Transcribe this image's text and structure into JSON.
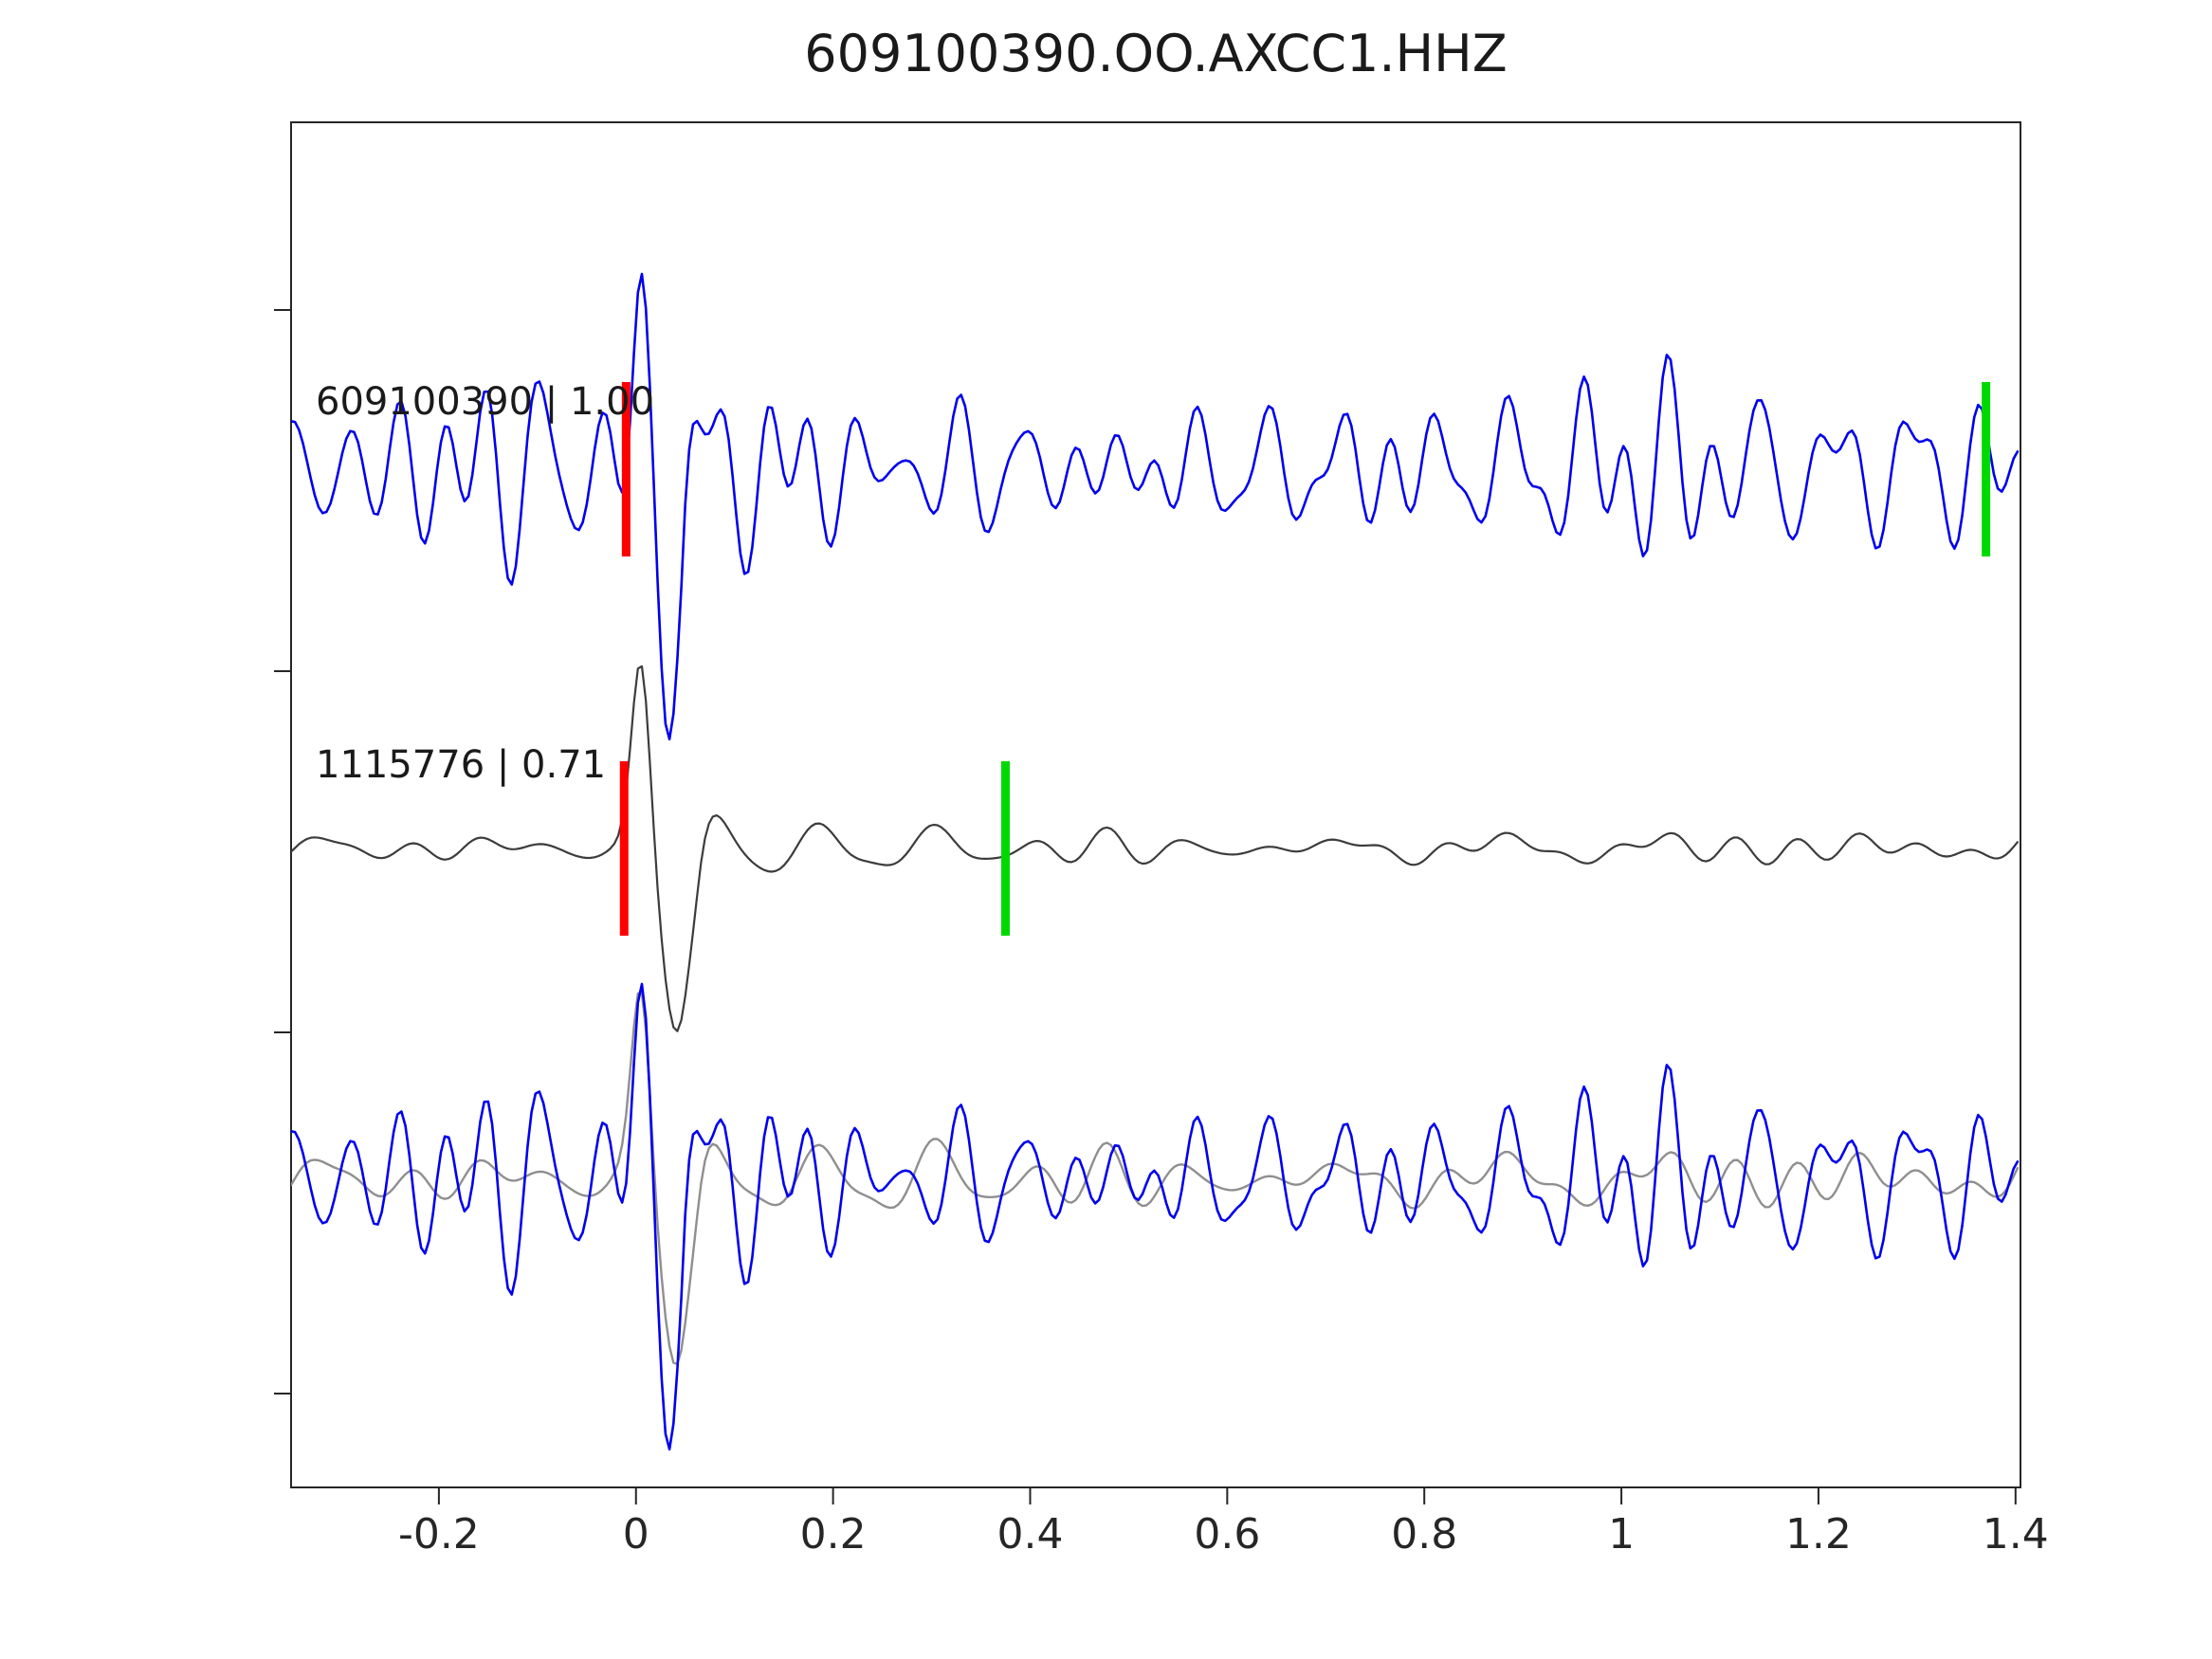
{
  "figure": {
    "background": "#ffffff"
  },
  "chart_data": {
    "type": "line",
    "title": "609100390.OO.AXCC1.HHZ",
    "xlabel": "",
    "ylabel": "",
    "xlim": [
      -0.35,
      1.405
    ],
    "grid": false,
    "legend": null,
    "x_ticks": [
      -0.2,
      0,
      0.2,
      0.4,
      0.6,
      0.8,
      1,
      1.2,
      1.4
    ],
    "x_tick_labels": [
      "-0.2",
      "0",
      "0.2",
      "0.4",
      "0.6",
      "0.8",
      "1",
      "1.2",
      "1.4"
    ],
    "colors": {
      "template_blue": "#0000ee",
      "detection_gray": "#3c3c3c",
      "overlay_gray": "#8f8f8f",
      "pick_red": "#ff0000",
      "pick_green": "#00d900",
      "axis": "#262626"
    },
    "traces": [
      {
        "name": "template-trace",
        "row": "top",
        "color": "#0000ee",
        "width": 2.6,
        "label": "609100390 | 1.00",
        "picks": [
          {
            "color": "#ff0000",
            "t": -0.01
          },
          {
            "color": "#00d900",
            "t": 1.37
          }
        ],
        "synthesis": {
          "seed": 1137,
          "n_comp": 22,
          "noise_amp": 11,
          "f_min": 7,
          "f_max": 26,
          "event": {
            "up_amp": 175,
            "up_t": 0.004,
            "up_w": 0.012,
            "down_amp": 230,
            "down_t": 0.033,
            "down_w": 0.016,
            "coda_amp": 100,
            "coda_freq": 14,
            "coda_tau": 0.05,
            "coda_t0": 0.045
          }
        }
      },
      {
        "name": "detection-trace",
        "row": "middle",
        "color": "#3c3c3c",
        "width": 2.2,
        "label": "1115776 | 0.71",
        "picks": [
          {
            "color": "#ff0000",
            "t": -0.012
          },
          {
            "color": "#00d900",
            "t": 0.375
          }
        ],
        "synthesis": {
          "seed": 77,
          "n_comp": 20,
          "noise_amp": 3.4,
          "f_min": 5,
          "f_max": 18,
          "event": {
            "up_amp": 195,
            "up_t": 0.005,
            "up_w": 0.013,
            "down_amp": 190,
            "down_t": 0.042,
            "down_w": 0.02,
            "coda_amp": 48,
            "coda_freq": 10,
            "coda_tau": 0.1,
            "coda_t0": 0.06
          }
        }
      },
      {
        "name": "overlay-gray-trace",
        "row": "bottom",
        "color": "#8f8f8f",
        "width": 2.4,
        "label": "",
        "picks": [],
        "synthesis": {
          "seed": 77,
          "n_comp": 20,
          "noise_amp": 6,
          "f_min": 5,
          "f_max": 18,
          "event": {
            "up_amp": 195,
            "up_t": 0.005,
            "up_w": 0.013,
            "down_amp": 190,
            "down_t": 0.042,
            "down_w": 0.02,
            "coda_amp": 48,
            "coda_freq": 10,
            "coda_tau": 0.1,
            "coda_t0": 0.06
          }
        }
      },
      {
        "name": "overlay-blue-trace",
        "row": "bottom",
        "color": "#0000ee",
        "width": 2.6,
        "label": "",
        "picks": [],
        "synthesis": {
          "seed": 1137,
          "n_comp": 22,
          "noise_amp": 11,
          "f_min": 7,
          "f_max": 26,
          "event": {
            "up_amp": 175,
            "up_t": 0.004,
            "up_w": 0.012,
            "down_amp": 230,
            "down_t": 0.033,
            "down_w": 0.016,
            "coda_amp": 100,
            "coda_freq": 14,
            "coda_tau": 0.05,
            "coda_t0": 0.045
          }
        }
      }
    ]
  }
}
